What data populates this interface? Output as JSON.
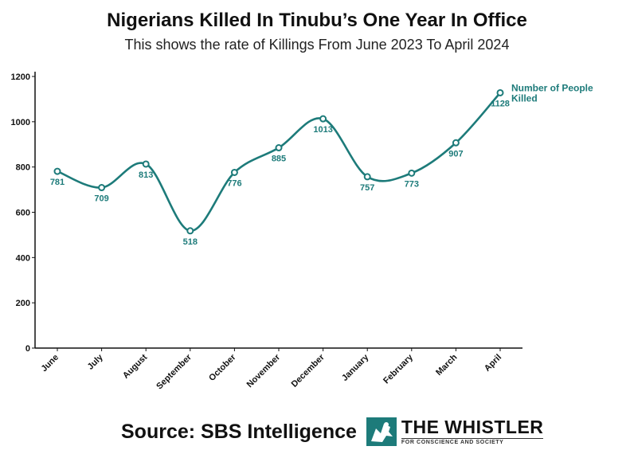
{
  "header": {
    "title": "Nigerians Killed In Tinubu’s One Year In Office",
    "subtitle": "This shows the rate of Killings From June 2023 To April 2024"
  },
  "chart_data": {
    "type": "line",
    "title": "Nigerians Killed In Tinubu’s One Year In Office",
    "subtitle": "This shows the rate of Killings From June 2023 To April 2024",
    "categories": [
      "June",
      "July",
      "August",
      "September",
      "October",
      "November",
      "December",
      "January",
      "February",
      "March",
      "April"
    ],
    "series": [
      {
        "name": "Number of People Killed",
        "values": [
          781,
          709,
          813,
          518,
          776,
          885,
          1013,
          757,
          773,
          907,
          1128
        ]
      }
    ],
    "ylim": [
      0,
      1200
    ],
    "yticks": [
      0,
      200,
      400,
      600,
      800,
      1000,
      1200
    ],
    "xlabel": "",
    "ylabel": "",
    "grid": false,
    "legend": "end-of-line label",
    "line_color": "#1d7b7a"
  },
  "footer": {
    "source": "Source: SBS Intelligence",
    "logo_name": "THE WHISTLER",
    "logo_tagline": "FOR CONSCIENCE AND SOCIETY"
  }
}
